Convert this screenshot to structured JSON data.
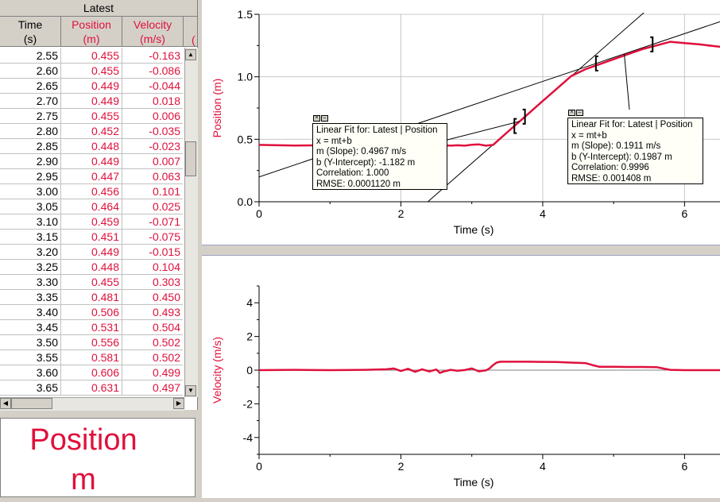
{
  "table": {
    "title": "Latest",
    "columns": [
      {
        "name": "Time",
        "unit": "(s)"
      },
      {
        "name": "Position",
        "unit": "(m)"
      },
      {
        "name": "Velocity",
        "unit": "(m/s)"
      },
      {
        "name": "(",
        "unit": ""
      }
    ],
    "rows": [
      [
        "2.55",
        "0.455",
        "-0.163"
      ],
      [
        "2.60",
        "0.455",
        "-0.086"
      ],
      [
        "2.65",
        "0.449",
        "-0.044"
      ],
      [
        "2.70",
        "0.449",
        "0.018"
      ],
      [
        "2.75",
        "0.455",
        "0.006"
      ],
      [
        "2.80",
        "0.452",
        "-0.035"
      ],
      [
        "2.85",
        "0.448",
        "-0.023"
      ],
      [
        "2.90",
        "0.449",
        "0.007"
      ],
      [
        "2.95",
        "0.447",
        "0.063"
      ],
      [
        "3.00",
        "0.456",
        "0.101"
      ],
      [
        "3.05",
        "0.464",
        "0.025"
      ],
      [
        "3.10",
        "0.459",
        "-0.071"
      ],
      [
        "3.15",
        "0.451",
        "-0.075"
      ],
      [
        "3.20",
        "0.449",
        "-0.015"
      ],
      [
        "3.25",
        "0.448",
        "0.104"
      ],
      [
        "3.30",
        "0.455",
        "0.303"
      ],
      [
        "3.35",
        "0.481",
        "0.450"
      ],
      [
        "3.40",
        "0.506",
        "0.493"
      ],
      [
        "3.45",
        "0.531",
        "0.504"
      ],
      [
        "3.50",
        "0.556",
        "0.502"
      ],
      [
        "3.55",
        "0.581",
        "0.502"
      ],
      [
        "3.60",
        "0.606",
        "0.499"
      ],
      [
        "3.65",
        "0.631",
        "0.497"
      ]
    ]
  },
  "meter": {
    "label": "Position",
    "unit": "m"
  },
  "colors": {
    "data": "#e0103c",
    "text": "#000000",
    "grid": "#c8c8c8"
  },
  "chart_data": [
    {
      "type": "line",
      "xlabel": "Time (s)",
      "ylabel": "Position (m)",
      "xlim": [
        0,
        6.5
      ],
      "ylim": [
        0,
        1.5
      ],
      "xticks": [
        "0",
        "2",
        "4",
        "6"
      ],
      "yticks": [
        "0.0",
        "0.5",
        "1.0",
        "1.5"
      ],
      "grid": true,
      "series": [
        {
          "name": "Latest | Position",
          "x": [
            0,
            0.5,
            1,
            1.5,
            2,
            2.5,
            2.6,
            2.7,
            2.8,
            2.9,
            3.0,
            3.1,
            3.2,
            3.3,
            3.4,
            3.5,
            3.6,
            3.7,
            3.8,
            4.0,
            4.2,
            4.4,
            4.6,
            4.8,
            5.0,
            5.2,
            5.4,
            5.6,
            5.8,
            6.0,
            6.2,
            6.5
          ],
          "y": [
            0.455,
            0.45,
            0.452,
            0.45,
            0.455,
            0.455,
            0.452,
            0.449,
            0.452,
            0.449,
            0.456,
            0.459,
            0.449,
            0.455,
            0.506,
            0.556,
            0.606,
            0.656,
            0.706,
            0.806,
            0.905,
            1.005,
            1.06,
            1.1,
            1.14,
            1.18,
            1.22,
            1.25,
            1.28,
            1.27,
            1.26,
            1.24
          ]
        }
      ],
      "fits": [
        {
          "title": "Linear Fit for: Latest | Position",
          "equation": "x = mt+b",
          "slope": "m (Slope): 0.4967 m/s",
          "intercept": "b (Y-Intercept): -1.182 m",
          "correlation": "Correlation: 1.000",
          "rmse": "RMSE: 0.0001120 m",
          "m": 0.4967,
          "b": -1.182,
          "range": [
            3.6,
            3.75
          ]
        },
        {
          "title": "Linear Fit for: Latest | Position",
          "equation": "x = mt+b",
          "slope": "m (Slope): 0.1911 m/s",
          "intercept": "b (Y-Intercept): 0.1987 m",
          "correlation": "Correlation: 0.9996",
          "rmse": "RMSE: 0.001408 m",
          "m": 0.1911,
          "b": 0.1987,
          "range": [
            4.75,
            5.55
          ]
        }
      ]
    },
    {
      "type": "line",
      "xlabel": "Time (s)",
      "ylabel": "Velocity (m/s)",
      "xlim": [
        0,
        6.5
      ],
      "ylim": [
        -5,
        5
      ],
      "xticks": [
        "0",
        "2",
        "4",
        "6"
      ],
      "yticks": [
        "-4",
        "-2",
        "0",
        "2",
        "4"
      ],
      "grid": false,
      "series": [
        {
          "name": "Latest | Velocity",
          "x": [
            0,
            0.5,
            1,
            1.5,
            1.8,
            1.9,
            2.0,
            2.1,
            2.2,
            2.3,
            2.4,
            2.5,
            2.55,
            2.6,
            2.7,
            2.8,
            2.9,
            3.0,
            3.1,
            3.2,
            3.25,
            3.3,
            3.35,
            3.4,
            3.6,
            3.8,
            4.0,
            4.2,
            4.4,
            4.6,
            4.7,
            4.8,
            5.0,
            5.2,
            5.4,
            5.6,
            5.8,
            6.0,
            6.2,
            6.5
          ],
          "y": [
            0,
            0.02,
            0,
            0.02,
            0.05,
            0.1,
            -0.05,
            0.08,
            -0.1,
            0.05,
            -0.08,
            0.04,
            -0.163,
            -0.086,
            0.018,
            -0.035,
            0.007,
            0.101,
            -0.071,
            -0.015,
            0.104,
            0.303,
            0.45,
            0.5,
            0.5,
            0.5,
            0.49,
            0.48,
            0.45,
            0.42,
            0.3,
            0.2,
            0.2,
            0.19,
            0.19,
            0.18,
            0.02,
            0,
            0,
            0
          ]
        }
      ]
    }
  ]
}
